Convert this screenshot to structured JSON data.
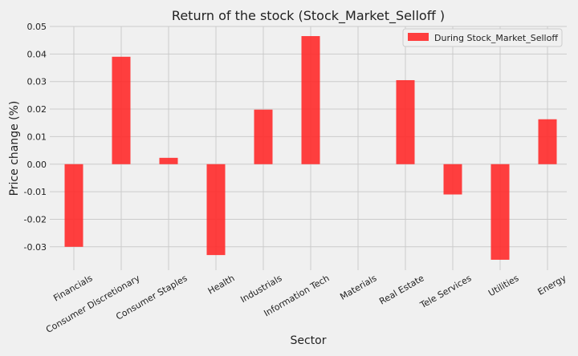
{
  "chart_data": {
    "type": "bar",
    "title": "Return of the stock (Stock_Market_Selloff )",
    "xlabel": "Sector",
    "ylabel": "Price change (%)",
    "categories": [
      "Financials",
      "Consumer Discretionary",
      "Consumer Staples",
      "Health",
      "Industrials",
      "Information Tech",
      "Materials",
      "Real Estate",
      "Tele Services",
      "Utilities",
      "Energy"
    ],
    "series": [
      {
        "name": "During Stock_Market_Selloff",
        "color": "#ff2a2a",
        "values": [
          -0.03,
          0.039,
          0.0023,
          -0.033,
          0.0198,
          0.0465,
          0.0,
          0.0305,
          -0.011,
          -0.0347,
          0.0163
        ]
      }
    ],
    "ylim": [
      -0.0385,
      0.05
    ],
    "yticks": [
      "-0.03",
      "-0.02",
      "-0.01",
      "0.00",
      "0.01",
      "0.02",
      "0.03",
      "0.04",
      "0.05"
    ],
    "grid": true,
    "legend": "top-right"
  }
}
